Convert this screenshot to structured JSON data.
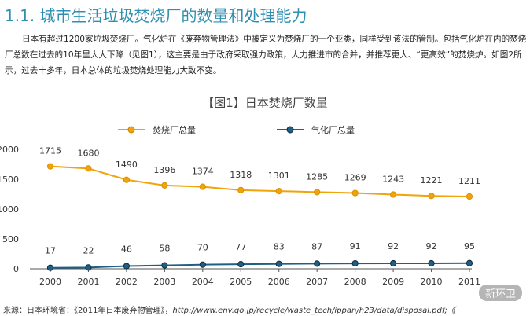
{
  "page": {
    "heading": "1.1. 城市生活垃圾焚烧厂的数量和处理能力",
    "intro": "日本有超过1200家垃圾焚烧厂。气化炉在《废弃物管理法》中被定义为焚烧厂的一个亚类，同样受到该法的管制。包括气化炉在内的焚烧厂总数在过去的10年里大大下降（见图1），这主要是由于政府采取强力政策，大力推进市的合并，并推荐更大、“更高效”的焚烧炉。如图2所示，过去十多年，日本总体的垃圾焚烧处理能力大致不变。",
    "source_label": "来源：日本环境省：",
    "source_doc": "《2011年日本废弃物管理》，",
    "source_url": "http://www.env.go.jp/recycle/waste_tech/ippan/h23/data/disposal.pdf;《",
    "watermark": "新环卫"
  },
  "chart_data": {
    "type": "line",
    "title": "【图1】日本焚烧厂数量",
    "categories": [
      "2000",
      "2001",
      "2002",
      "2003",
      "2004",
      "2005",
      "2006",
      "2007",
      "2008",
      "2009",
      "2010",
      "2011"
    ],
    "series": [
      {
        "name": "焚烧厂总量",
        "color": "#f0a30a",
        "values": [
          1715,
          1680,
          1490,
          1396,
          1374,
          1318,
          1301,
          1285,
          1269,
          1243,
          1221,
          1211
        ]
      },
      {
        "name": "气化厂总量",
        "color": "#1f5f85",
        "values": [
          17,
          22,
          46,
          58,
          70,
          77,
          83,
          87,
          91,
          92,
          92,
          95
        ]
      }
    ],
    "ylim": [
      0,
      2000
    ],
    "yticks": [
      0,
      500,
      1000,
      1500,
      2000
    ],
    "xlabel": "",
    "ylabel": "",
    "legend": "top"
  }
}
